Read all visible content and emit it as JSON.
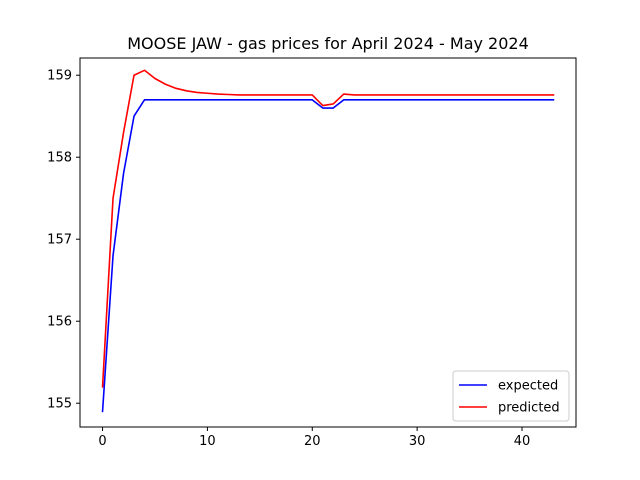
{
  "chart_data": {
    "type": "line",
    "title": "MOOSE JAW - gas prices for April 2024 - May 2024",
    "xlabel": "",
    "ylabel": "",
    "xlim": [
      -2.15,
      45.15
    ],
    "ylim": [
      154.71,
      159.21
    ],
    "xticks": [
      0,
      10,
      20,
      30,
      40
    ],
    "yticks": [
      155,
      156,
      157,
      158,
      159
    ],
    "grid": false,
    "legend_position": "lower-right",
    "series": [
      {
        "name": "expected",
        "color": "#0000ff",
        "x": [
          0,
          1,
          2,
          3,
          4,
          5,
          6,
          7,
          8,
          9,
          10,
          11,
          12,
          13,
          14,
          15,
          16,
          17,
          18,
          19,
          20,
          21,
          22,
          23,
          24,
          25,
          26,
          27,
          28,
          29,
          30,
          31,
          32,
          33,
          34,
          35,
          36,
          37,
          38,
          39,
          40,
          41,
          42,
          43
        ],
        "y": [
          154.9,
          156.8,
          157.8,
          158.5,
          158.7,
          158.7,
          158.7,
          158.7,
          158.7,
          158.7,
          158.7,
          158.7,
          158.7,
          158.7,
          158.7,
          158.7,
          158.7,
          158.7,
          158.7,
          158.7,
          158.7,
          158.6,
          158.6,
          158.7,
          158.7,
          158.7,
          158.7,
          158.7,
          158.7,
          158.7,
          158.7,
          158.7,
          158.7,
          158.7,
          158.7,
          158.7,
          158.7,
          158.7,
          158.7,
          158.7,
          158.7,
          158.7,
          158.7,
          158.7
        ]
      },
      {
        "name": "predicted",
        "color": "#ff0000",
        "x": [
          0,
          1,
          2,
          3,
          4,
          5,
          6,
          7,
          8,
          9,
          10,
          11,
          12,
          13,
          14,
          15,
          16,
          17,
          18,
          19,
          20,
          21,
          22,
          23,
          24,
          25,
          26,
          27,
          28,
          29,
          30,
          31,
          32,
          33,
          34,
          35,
          36,
          37,
          38,
          39,
          40,
          41,
          42,
          43
        ],
        "y": [
          155.2,
          157.5,
          158.3,
          159.0,
          159.06,
          158.96,
          158.89,
          158.84,
          158.81,
          158.79,
          158.78,
          158.77,
          158.765,
          158.76,
          158.76,
          158.76,
          158.76,
          158.76,
          158.76,
          158.76,
          158.76,
          158.63,
          158.65,
          158.77,
          158.76,
          158.76,
          158.76,
          158.76,
          158.76,
          158.76,
          158.76,
          158.76,
          158.76,
          158.76,
          158.76,
          158.76,
          158.76,
          158.76,
          158.76,
          158.76,
          158.76,
          158.76,
          158.76,
          158.76
        ]
      }
    ]
  }
}
